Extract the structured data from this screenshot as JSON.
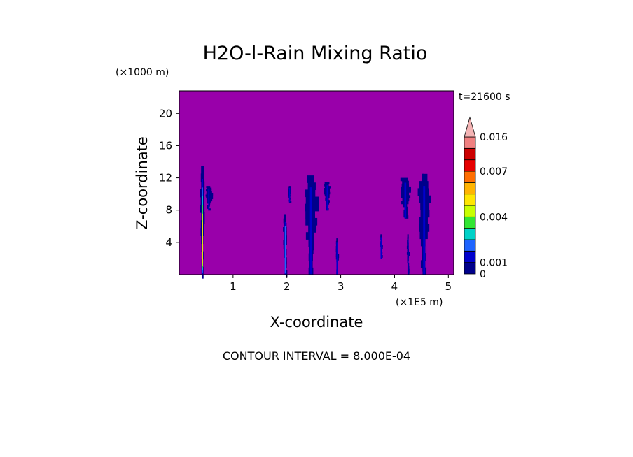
{
  "chart_data": {
    "type": "heatmap",
    "title": "H2O-l-Rain Mixing Ratio",
    "xlabel": "X-coordinate",
    "ylabel": "Z-coordinate",
    "x_unit": "(×1E5 m)",
    "y_unit": "(×1000 m)",
    "time_label": "t=21600 s",
    "footer": "CONTOUR INTERVAL = 8.000E-04",
    "xlim": [
      0,
      5.1
    ],
    "ylim": [
      0,
      22.8
    ],
    "x_ticks": [
      1,
      2,
      3,
      4,
      5
    ],
    "y_ticks": [
      4,
      8,
      12,
      16,
      20
    ],
    "background_color": "#9900aa",
    "colorbar": {
      "levels": [
        0,
        0.0008,
        0.0016,
        0.0024,
        0.0032,
        0.004,
        0.0048,
        0.0056,
        0.0064,
        0.0072,
        0.0104,
        0.0136,
        0.016
      ],
      "colors": [
        "#00008b",
        "#0000cd",
        "#1e64ff",
        "#00d2c8",
        "#32e632",
        "#c8ff00",
        "#ffe600",
        "#ffb400",
        "#ff6e00",
        "#e60000",
        "#cc0000",
        "#f08080",
        "#f4b4b4"
      ],
      "tick_labels": [
        {
          "value": 0,
          "label": "0"
        },
        {
          "value": 0.001,
          "label": "0.001"
        },
        {
          "value": 0.004,
          "label": "0.004"
        },
        {
          "value": 0.007,
          "label": "0.007"
        },
        {
          "value": 0.016,
          "label": "0.016"
        }
      ]
    },
    "features": [
      {
        "x": 0.43,
        "z_min": 0,
        "z_max": 13.5,
        "width": 0.08,
        "peak": 0.005
      },
      {
        "x": 0.55,
        "z_min": 8,
        "z_max": 11,
        "width": 0.12,
        "peak": 0.0009
      },
      {
        "x": 1.97,
        "z_min": 0,
        "z_max": 7.5,
        "width": 0.07,
        "peak": 0.0018
      },
      {
        "x": 2.05,
        "z_min": 9,
        "z_max": 11,
        "width": 0.05,
        "peak": 0.0009
      },
      {
        "x": 2.45,
        "z_min": 0,
        "z_max": 12.3,
        "width": 0.22,
        "peak": 0.0009
      },
      {
        "x": 2.75,
        "z_min": 8,
        "z_max": 11.5,
        "width": 0.12,
        "peak": 0.0009
      },
      {
        "x": 2.93,
        "z_min": 0,
        "z_max": 4.5,
        "width": 0.04,
        "peak": 0.0009
      },
      {
        "x": 3.75,
        "z_min": 2,
        "z_max": 5,
        "width": 0.03,
        "peak": 0.0009
      },
      {
        "x": 4.2,
        "z_min": 7,
        "z_max": 12,
        "width": 0.18,
        "peak": 0.0009
      },
      {
        "x": 4.25,
        "z_min": 0,
        "z_max": 5,
        "width": 0.04,
        "peak": 0.0009
      },
      {
        "x": 4.55,
        "z_min": 0,
        "z_max": 12.5,
        "width": 0.2,
        "peak": 0.0009
      }
    ]
  }
}
